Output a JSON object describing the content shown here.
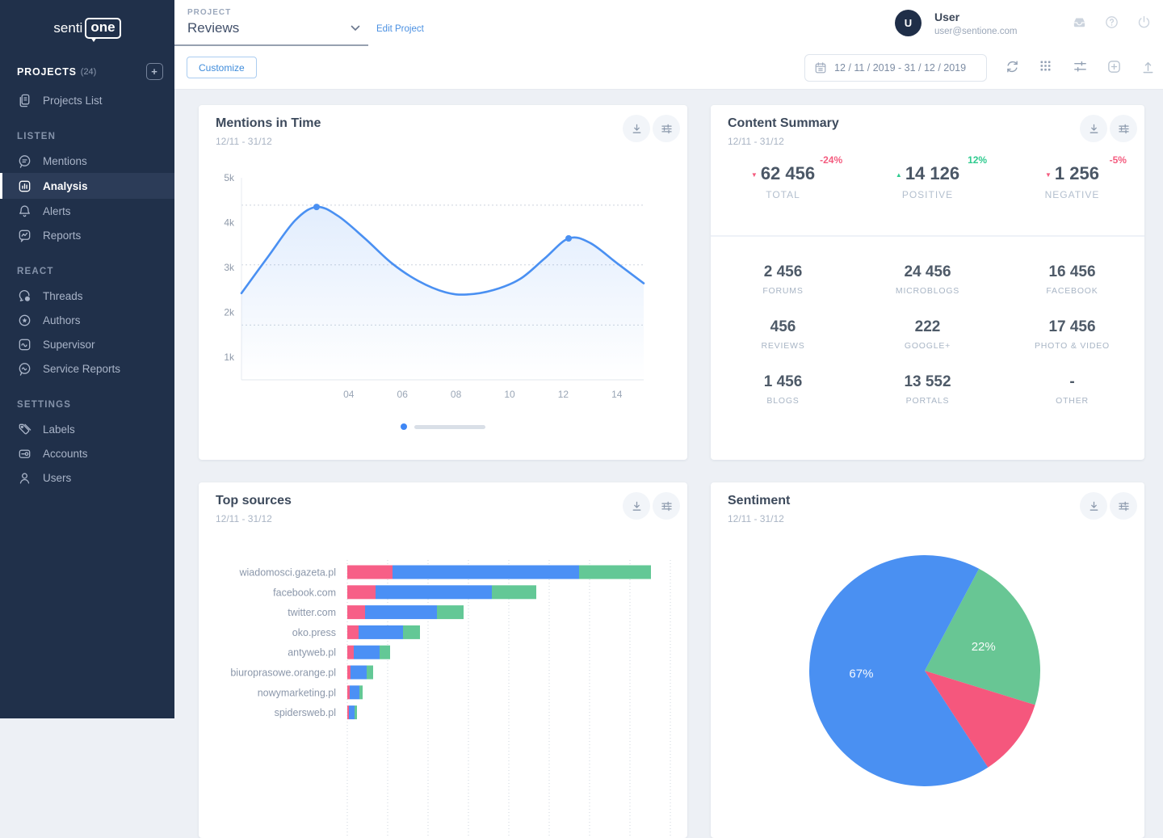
{
  "brand": {
    "name_left": "senti",
    "name_box": "one"
  },
  "sidebar": {
    "projects_label": "PROJECTS",
    "projects_count": "(24)",
    "projects_list": "Projects List",
    "listen": "LISTEN",
    "mentions": "Mentions",
    "analysis": "Analysis",
    "alerts": "Alerts",
    "reports": "Reports",
    "react": "REACT",
    "threads": "Threads",
    "authors": "Authors",
    "supervisor": "Supervisor",
    "service_reports": "Service Reports",
    "settings": "SETTINGS",
    "labels": "Labels",
    "accounts": "Accounts",
    "users": "Users"
  },
  "topbar": {
    "project_label": "PROJECT",
    "project_name": "Reviews",
    "edit_project": "Edit Project",
    "user_initial": "U",
    "user_name": "User",
    "user_email": "user@sentione.com"
  },
  "toolbar": {
    "customize": "Customize",
    "date_range": "12 / 11 / 2019 - 31 / 12 / 2019"
  },
  "cards": {
    "mentions_in_time": {
      "title": "Mentions in Time",
      "subtitle": "12/11 - 31/12"
    },
    "content_summary": {
      "title": "Content Summary",
      "subtitle": "12/11 - 31/12",
      "stats": [
        {
          "value": "62 456",
          "label": "TOTAL",
          "change": "-24%",
          "direction": "down"
        },
        {
          "value": "14 126",
          "label": "POSITIVE",
          "change": "12%",
          "direction": "up"
        },
        {
          "value": "1 256",
          "label": "NEGATIVE",
          "change": "-5%",
          "direction": "down"
        }
      ],
      "grid": [
        {
          "value": "2 456",
          "label": "FORUMS"
        },
        {
          "value": "24 456",
          "label": "MICROBLOGS"
        },
        {
          "value": "16 456",
          "label": "FACEBOOK"
        },
        {
          "value": "456",
          "label": "REVIEWS"
        },
        {
          "value": "222",
          "label": "GOOGLE+"
        },
        {
          "value": "17 456",
          "label": "PHOTO & VIDEO"
        },
        {
          "value": "1 456",
          "label": "BLOGS"
        },
        {
          "value": "13 552",
          "label": "PORTALS"
        },
        {
          "value": "-",
          "label": "OTHER"
        }
      ]
    },
    "top_sources": {
      "title": "Top sources",
      "subtitle": "12/11 - 31/12"
    },
    "sentiment": {
      "title": "Sentiment",
      "subtitle": "12/11 - 31/12"
    }
  },
  "colors": {
    "accent_blue": "#4a90f2",
    "negative_red": "#f75f87",
    "neutral_blue": "#4b90f5",
    "positive_green": "#63c896",
    "change_up": "#2fcb8f",
    "change_down": "#f45c7f"
  },
  "chart_data": [
    {
      "id": "mentions_in_time",
      "type": "line",
      "title": "Mentions in Time",
      "xlim": [
        0,
        15
      ],
      "ylim": [
        500,
        5000
      ],
      "y_ticks": [
        {
          "v": 5000,
          "label": "5k"
        },
        {
          "v": 4000,
          "label": "4k"
        },
        {
          "v": 3000,
          "label": "3k"
        },
        {
          "v": 2000,
          "label": "2k"
        },
        {
          "v": 1000,
          "label": "1k"
        }
      ],
      "x_ticks": [
        {
          "v": 4,
          "label": "04"
        },
        {
          "v": 6,
          "label": "06"
        },
        {
          "v": 8,
          "label": "08"
        },
        {
          "v": 10,
          "label": "10"
        },
        {
          "v": 12,
          "label": "12"
        },
        {
          "v": 14,
          "label": "14"
        }
      ],
      "points": [
        [
          0,
          2430
        ],
        [
          1,
          3250
        ],
        [
          2,
          4050
        ],
        [
          2.8,
          4350
        ],
        [
          3.6,
          4150
        ],
        [
          4.6,
          3650
        ],
        [
          5.6,
          3100
        ],
        [
          6.6,
          2700
        ],
        [
          7.6,
          2450
        ],
        [
          8.4,
          2400
        ],
        [
          9.4,
          2500
        ],
        [
          10.4,
          2750
        ],
        [
          11.3,
          3200
        ],
        [
          12.2,
          3650
        ],
        [
          13,
          3550
        ],
        [
          14,
          3100
        ],
        [
          15,
          2650
        ]
      ],
      "markers": [
        [
          2.8,
          4350
        ],
        [
          12.2,
          3650
        ]
      ],
      "dotted_levels": [
        4390,
        3060,
        1720
      ],
      "line_color": "#4a90f2",
      "grid": "dotted-horizontal",
      "legend": "none"
    },
    {
      "id": "top_sources",
      "type": "bar",
      "orientation": "horizontal",
      "stacked": true,
      "title": "Top sources",
      "categories": [
        "wiadomosci.gazeta.pl",
        "facebook.com",
        "twitter.com",
        "oko.press",
        "antyweb.pl",
        "biuroprasowe.orange.pl",
        "nowymarketing.pl",
        "spidersweb.pl"
      ],
      "series": [
        {
          "name": "negative",
          "color": "#f75f87",
          "values": [
            56,
            35,
            22,
            14,
            8,
            4,
            3,
            2
          ]
        },
        {
          "name": "neutral",
          "color": "#4b90f5",
          "values": [
            231,
            144,
            89,
            55,
            32,
            20,
            12,
            7
          ]
        },
        {
          "name": "positive",
          "color": "#63c896",
          "values": [
            89,
            55,
            33,
            21,
            13,
            8,
            4,
            3
          ]
        }
      ],
      "xlim": [
        0,
        400
      ],
      "grid": "dotted-vertical",
      "legend": "none"
    },
    {
      "id": "sentiment",
      "type": "pie",
      "title": "Sentiment",
      "start_angle": 28,
      "slices": [
        {
          "label": "positive",
          "pct": 22,
          "color": "#68c694",
          "text": "22%"
        },
        {
          "label": "negative",
          "pct": 11,
          "color": "#f5577d",
          "text": ""
        },
        {
          "label": "neutral",
          "pct": 67,
          "color": "#4a90f2",
          "text": "67%"
        }
      ],
      "legend": "none"
    }
  ]
}
